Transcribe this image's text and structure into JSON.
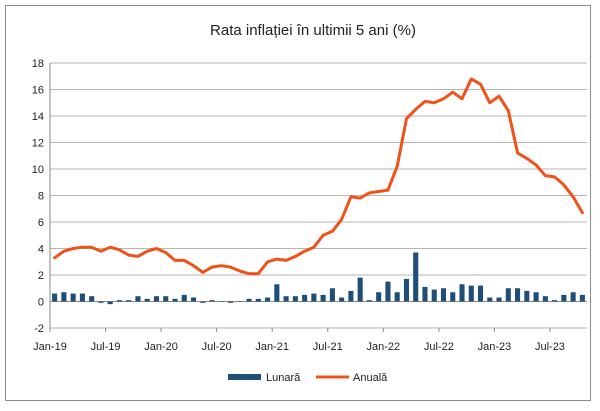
{
  "chart_data": {
    "type": "bar+line",
    "title": "Rata inflației în ultimii 5 ani (%)",
    "xlabel": "",
    "ylabel": "",
    "ylim": [
      -2,
      18
    ],
    "yticks": [
      -2,
      0,
      2,
      4,
      6,
      8,
      10,
      12,
      14,
      16,
      18
    ],
    "grid": "horizontal",
    "legend_position": "bottom",
    "x": [
      "Jan-19",
      "Feb-19",
      "Mar-19",
      "Apr-19",
      "May-19",
      "Jun-19",
      "Jul-19",
      "Aug-19",
      "Sep-19",
      "Oct-19",
      "Nov-19",
      "Dec-19",
      "Jan-20",
      "Feb-20",
      "Mar-20",
      "Apr-20",
      "May-20",
      "Jun-20",
      "Jul-20",
      "Aug-20",
      "Sep-20",
      "Oct-20",
      "Nov-20",
      "Dec-20",
      "Jan-21",
      "Feb-21",
      "Mar-21",
      "Apr-21",
      "May-21",
      "Jun-21",
      "Jul-21",
      "Aug-21",
      "Sep-21",
      "Oct-21",
      "Nov-21",
      "Dec-21",
      "Jan-22",
      "Feb-22",
      "Mar-22",
      "Apr-22",
      "May-22",
      "Jun-22",
      "Jul-22",
      "Aug-22",
      "Sep-22",
      "Oct-22",
      "Nov-22",
      "Dec-22",
      "Jan-23",
      "Feb-23",
      "Mar-23",
      "Apr-23",
      "May-23",
      "Jun-23",
      "Jul-23",
      "Aug-23",
      "Sep-23",
      "Oct-23"
    ],
    "x_tick_labels": [
      "Jan-19",
      "Jul-19",
      "Jan-20",
      "Jul-20",
      "Jan-21",
      "Jul-21",
      "Jan-22",
      "Jul-22",
      "Jan-23",
      "Jul-23"
    ],
    "series": [
      {
        "name": "Lunară",
        "type": "bar",
        "color": "#1f4e79",
        "values": [
          0.6,
          0.7,
          0.6,
          0.6,
          0.4,
          -0.1,
          -0.2,
          0.1,
          0.1,
          0.4,
          0.2,
          0.4,
          0.4,
          0.2,
          0.5,
          0.3,
          -0.1,
          0.1,
          0.0,
          -0.1,
          0.0,
          0.2,
          0.2,
          0.3,
          1.3,
          0.4,
          0.4,
          0.5,
          0.6,
          0.5,
          1.0,
          0.3,
          0.8,
          1.8,
          0.1,
          0.7,
          1.5,
          0.7,
          1.7,
          3.7,
          1.1,
          0.9,
          1.0,
          0.7,
          1.3,
          1.2,
          1.2,
          0.3,
          0.3,
          1.0,
          1.0,
          0.8,
          0.7,
          0.4,
          0.1,
          0.5,
          0.7,
          0.5
        ]
      },
      {
        "name": "Anuală",
        "type": "line",
        "color": "#f0521a",
        "values": [
          3.3,
          3.8,
          4.0,
          4.1,
          4.1,
          3.8,
          4.1,
          3.9,
          3.5,
          3.4,
          3.8,
          4.0,
          3.7,
          3.1,
          3.1,
          2.7,
          2.2,
          2.6,
          2.7,
          2.6,
          2.3,
          2.1,
          2.1,
          3.0,
          3.2,
          3.1,
          3.4,
          3.8,
          4.1,
          5.0,
          5.3,
          6.2,
          7.9,
          7.8,
          8.2,
          8.3,
          8.4,
          10.2,
          13.8,
          14.5,
          15.1,
          15.0,
          15.3,
          15.8,
          15.3,
          16.8,
          16.4,
          15.0,
          15.5,
          14.4,
          11.2,
          10.8,
          10.3,
          9.5,
          9.4,
          8.8,
          7.9,
          6.7
        ]
      }
    ]
  }
}
